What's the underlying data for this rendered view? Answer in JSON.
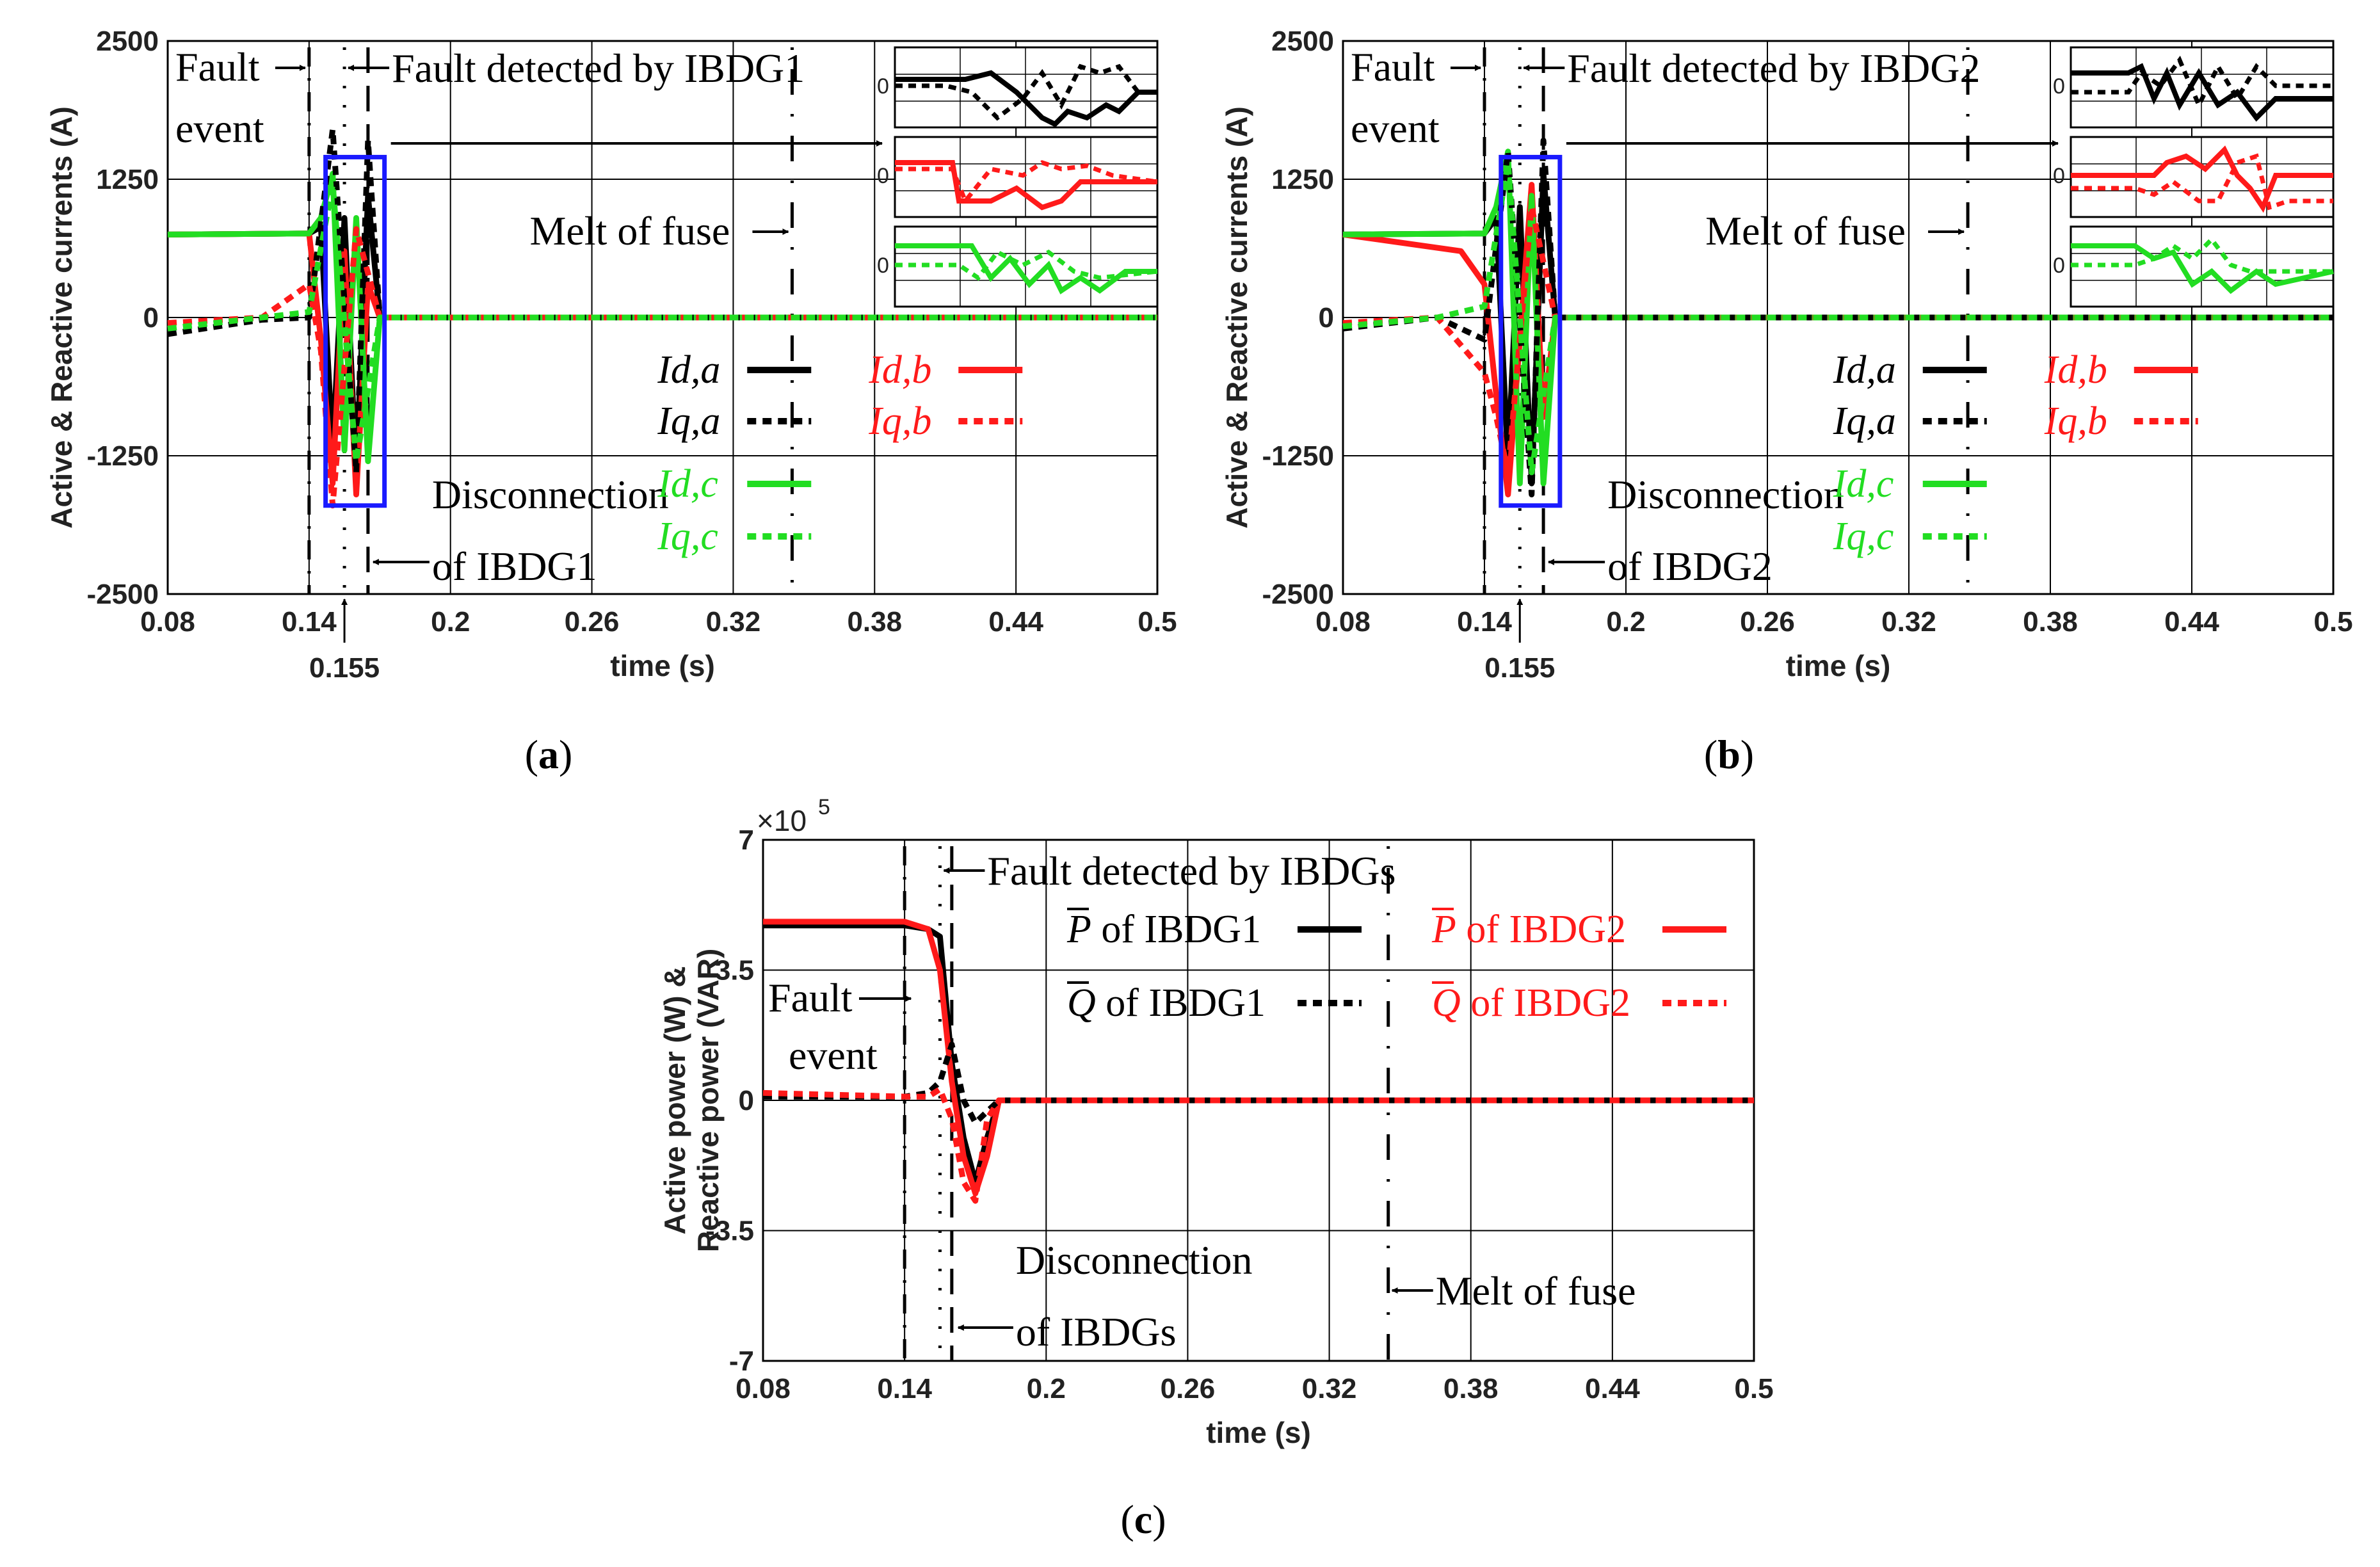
{
  "colors": {
    "black": "#000000",
    "red": "#ff1a1a",
    "green": "#22dd22",
    "blue": "#1a1aff",
    "grid": "#000000"
  },
  "chart_data": [
    {
      "type": "line",
      "panel": "a",
      "caption_label": "a",
      "ylabel": "Active & Reactive currents (A)",
      "xlabel": "time (s)",
      "xlim": [
        0.08,
        0.5
      ],
      "ylim": [
        -2500,
        2500
      ],
      "x_ticks": [
        "0.08",
        "0.14",
        "0.2",
        "0.26",
        "0.32",
        "0.38",
        "0.44",
        "0.5"
      ],
      "x_tick_values": [
        0.08,
        0.14,
        0.2,
        0.26,
        0.32,
        0.38,
        0.44,
        0.5
      ],
      "y_ticks": [
        "2500",
        "1250",
        "0",
        "-1250",
        "-2500"
      ],
      "y_tick_values": [
        2500,
        1250,
        0,
        -1250,
        -2500
      ],
      "extra_tick": {
        "label": "0.155",
        "value": 0.155
      },
      "annotations": {
        "fault_1": "Fault",
        "fault_2": "event",
        "detected": "Fault detected by IBDG1",
        "melt": "Melt of fuse",
        "disc_1": "Disconnection",
        "disc_2": "of IBDG1",
        "inset_zero": "0"
      },
      "event_times": {
        "fault": 0.14,
        "detected": 0.155,
        "disconnect": 0.165,
        "melt": 0.345
      },
      "legend": [
        {
          "label": "Id,a",
          "color": "#000000",
          "style": "solid"
        },
        {
          "label": "Id,b",
          "color": "#ff1a1a",
          "style": "solid"
        },
        {
          "label": "Iq,a",
          "color": "#000000",
          "style": "dotted"
        },
        {
          "label": "Iq,b",
          "color": "#ff1a1a",
          "style": "dotted"
        },
        {
          "label": "Id,c",
          "color": "#22dd22",
          "style": "solid"
        },
        {
          "label": "Iq,c",
          "color": "#22dd22",
          "style": "dotted"
        }
      ],
      "series": [
        {
          "name": "Id,a",
          "x": [
            0.08,
            0.14,
            0.145,
            0.15,
            0.155,
            0.16,
            0.165,
            0.17,
            0.5
          ],
          "values": [
            750,
            760,
            820,
            -1200,
            900,
            -1400,
            1100,
            0,
            0
          ]
        },
        {
          "name": "Id,b",
          "x": [
            0.08,
            0.14,
            0.145,
            0.15,
            0.155,
            0.16,
            0.165,
            0.17,
            0.5
          ],
          "values": [
            750,
            760,
            -200,
            -1500,
            600,
            -1600,
            300,
            0,
            0
          ]
        },
        {
          "name": "Id,c",
          "x": [
            0.08,
            0.14,
            0.145,
            0.15,
            0.155,
            0.16,
            0.165,
            0.17,
            0.5
          ],
          "values": [
            750,
            760,
            900,
            1300,
            -1200,
            900,
            -1300,
            0,
            0
          ]
        },
        {
          "name": "Iq,a",
          "x": [
            0.08,
            0.12,
            0.14,
            0.15,
            0.16,
            0.165,
            0.17,
            0.5
          ],
          "values": [
            -150,
            -20,
            0,
            1700,
            -1400,
            1600,
            0,
            0
          ]
        },
        {
          "name": "Iq,b",
          "x": [
            0.08,
            0.12,
            0.14,
            0.145,
            0.15,
            0.16,
            0.17,
            0.5
          ],
          "values": [
            -50,
            0,
            300,
            -300,
            -1700,
            800,
            0,
            0
          ]
        },
        {
          "name": "Iq,c",
          "x": [
            0.08,
            0.12,
            0.14,
            0.15,
            0.16,
            0.17,
            0.5
          ],
          "values": [
            -100,
            0,
            50,
            1200,
            -1300,
            0,
            0
          ]
        }
      ]
    },
    {
      "type": "line",
      "panel": "b",
      "caption_label": "b",
      "ylabel": "Active & Reactive currents (A)",
      "xlabel": "time (s)",
      "xlim": [
        0.08,
        0.5
      ],
      "ylim": [
        -2500,
        2500
      ],
      "x_ticks": [
        "0.08",
        "0.14",
        "0.2",
        "0.26",
        "0.32",
        "0.38",
        "0.44",
        "0.5"
      ],
      "x_tick_values": [
        0.08,
        0.14,
        0.2,
        0.26,
        0.32,
        0.38,
        0.44,
        0.5
      ],
      "y_ticks": [
        "2500",
        "1250",
        "0",
        "-1250",
        "-2500"
      ],
      "y_tick_values": [
        2500,
        1250,
        0,
        -1250,
        -2500
      ],
      "extra_tick": {
        "label": "0.155",
        "value": 0.155
      },
      "annotations": {
        "fault_1": "Fault",
        "fault_2": "event",
        "detected": "Fault detected by IBDG2",
        "melt": "Melt of fuse",
        "disc_1": "Disconnection",
        "disc_2": "of IBDG2",
        "inset_zero": "0"
      },
      "event_times": {
        "fault": 0.14,
        "detected": 0.155,
        "disconnect": 0.165,
        "melt": 0.345
      },
      "legend": [
        {
          "label": "Id,a",
          "color": "#000000",
          "style": "solid"
        },
        {
          "label": "Id,b",
          "color": "#ff1a1a",
          "style": "solid"
        },
        {
          "label": "Iq,a",
          "color": "#000000",
          "style": "dotted"
        },
        {
          "label": "Iq,b",
          "color": "#ff1a1a",
          "style": "dotted"
        },
        {
          "label": "Id,c",
          "color": "#22dd22",
          "style": "solid"
        },
        {
          "label": "Iq,c",
          "color": "#22dd22",
          "style": "dotted"
        }
      ],
      "series": [
        {
          "name": "Id,a",
          "x": [
            0.08,
            0.14,
            0.145,
            0.15,
            0.155,
            0.16,
            0.165,
            0.17,
            0.5
          ],
          "values": [
            750,
            760,
            900,
            -1300,
            1000,
            -1500,
            1300,
            0,
            0
          ]
        },
        {
          "name": "Id,b",
          "x": [
            0.08,
            0.13,
            0.14,
            0.145,
            0.15,
            0.16,
            0.165,
            0.17,
            0.5
          ],
          "values": [
            750,
            600,
            300,
            -700,
            -1600,
            1200,
            -900,
            0,
            0
          ]
        },
        {
          "name": "Id,c",
          "x": [
            0.08,
            0.14,
            0.145,
            0.15,
            0.155,
            0.16,
            0.165,
            0.17,
            0.5
          ],
          "values": [
            750,
            760,
            1000,
            1500,
            -1500,
            1100,
            -1500,
            0,
            0
          ]
        },
        {
          "name": "Iq,a",
          "x": [
            0.08,
            0.12,
            0.14,
            0.15,
            0.16,
            0.165,
            0.17,
            0.5
          ],
          "values": [
            -100,
            0,
            -200,
            1500,
            -1600,
            1600,
            0,
            0
          ]
        },
        {
          "name": "Iq,b",
          "x": [
            0.08,
            0.12,
            0.14,
            0.145,
            0.15,
            0.16,
            0.17,
            0.5
          ],
          "values": [
            -50,
            0,
            -500,
            -900,
            -1400,
            1000,
            0,
            0
          ]
        },
        {
          "name": "Iq,c",
          "x": [
            0.08,
            0.12,
            0.14,
            0.15,
            0.16,
            0.17,
            0.5
          ],
          "values": [
            -80,
            0,
            100,
            1400,
            -1400,
            0,
            0
          ]
        }
      ]
    },
    {
      "type": "line",
      "panel": "c",
      "caption_label": "c",
      "ylabel_1": "Active power (W) &",
      "ylabel_2": "Reactive power (VAR)",
      "xlabel": "time (s)",
      "xlim": [
        0.08,
        0.5
      ],
      "ylim": [
        -7,
        7
      ],
      "multiplier": "10",
      "multiplier_prefix": "×",
      "multiplier_exp": "5",
      "x_ticks": [
        "0.08",
        "0.14",
        "0.2",
        "0.26",
        "0.32",
        "0.38",
        "0.44",
        "0.5"
      ],
      "x_tick_values": [
        0.08,
        0.14,
        0.2,
        0.26,
        0.32,
        0.38,
        0.44,
        0.5
      ],
      "y_ticks": [
        "7",
        "3.5",
        "0",
        "-3.5",
        "-7"
      ],
      "y_tick_values": [
        7,
        3.5,
        0,
        -3.5,
        -7
      ],
      "annotations": {
        "fault_1": "Fault",
        "fault_2": "event",
        "detected": "Fault detected by IBDGs",
        "melt": "Melt of fuse",
        "disc_1": "Disconnection",
        "disc_2": "of IBDGs"
      },
      "event_times": {
        "fault": 0.14,
        "detected": 0.155,
        "disconnect": 0.16,
        "melt": 0.345
      },
      "legend": [
        {
          "sym": "P",
          "label": " of IBDG1",
          "color": "#000000",
          "style": "solid"
        },
        {
          "sym": "P",
          "label": " of IBDG2",
          "color": "#ff1a1a",
          "style": "solid"
        },
        {
          "sym": "Q",
          "label": " of IBDG1",
          "color": "#000000",
          "style": "dotted"
        },
        {
          "sym": "Q",
          "label": " of IBDG2",
          "color": "#ff1a1a",
          "style": "dotted"
        }
      ],
      "series": [
        {
          "name": "P of IBDG1",
          "x": [
            0.08,
            0.14,
            0.15,
            0.155,
            0.16,
            0.165,
            0.17,
            0.175,
            0.18,
            0.5
          ],
          "values": [
            4.7,
            4.7,
            4.6,
            4.4,
            1.0,
            -1.0,
            -2.2,
            -1.0,
            0,
            0
          ]
        },
        {
          "name": "P of IBDG2",
          "x": [
            0.08,
            0.14,
            0.15,
            0.155,
            0.16,
            0.165,
            0.17,
            0.175,
            0.18,
            0.5
          ],
          "values": [
            4.8,
            4.8,
            4.6,
            3.5,
            0.5,
            -1.5,
            -2.5,
            -1.5,
            0,
            0
          ]
        },
        {
          "name": "Q of IBDG1",
          "x": [
            0.08,
            0.14,
            0.15,
            0.155,
            0.16,
            0.165,
            0.17,
            0.175,
            0.18,
            0.5
          ],
          "values": [
            0.1,
            0.1,
            0.2,
            0.5,
            1.5,
            0,
            -0.6,
            -0.3,
            0,
            0
          ]
        },
        {
          "name": "Q of IBDG2",
          "x": [
            0.08,
            0.14,
            0.15,
            0.155,
            0.16,
            0.165,
            0.17,
            0.175,
            0.18,
            0.5
          ],
          "values": [
            0.2,
            0.1,
            0.1,
            0.3,
            -0.5,
            -2.2,
            -2.7,
            -0.5,
            0,
            0
          ]
        }
      ]
    }
  ]
}
